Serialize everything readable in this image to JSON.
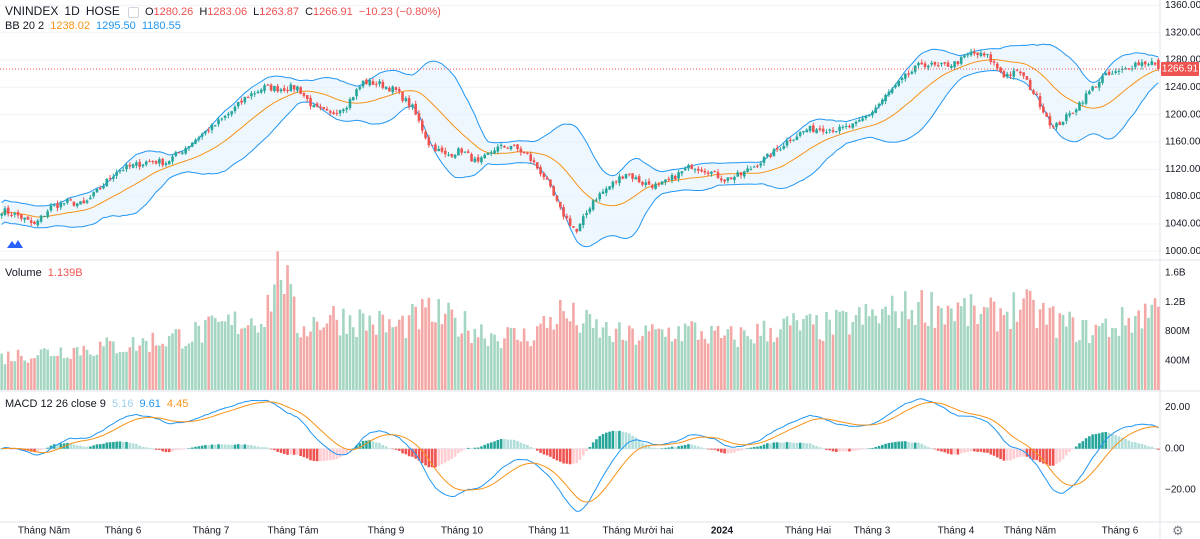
{
  "header": {
    "symbol": "VNINDEX",
    "interval": "1D",
    "exchange": "HOSE",
    "o_label": "O",
    "o": "1280.26",
    "h_label": "H",
    "h": "1283.06",
    "l_label": "L",
    "l": "1263.87",
    "c_label": "C",
    "c": "1266.91",
    "change": "−10.23 (−0.80%)"
  },
  "bb_legend": {
    "name": "BB 20 2",
    "basis": "1238.02",
    "upper": "1295.50",
    "lower": "1180.55"
  },
  "volume_legend": {
    "name": "Volume",
    "value": "1.139B"
  },
  "macd_legend": {
    "name": "MACD 12 26 close 9",
    "hist": "5.16",
    "macd": "9.61",
    "signal": "4.45"
  },
  "price_tag": "1266.91",
  "colors": {
    "up": "#26a69a",
    "down": "#ef5350",
    "upper": "#2196f3",
    "basis": "#f7931a",
    "band_fill": "#e3f2fd"
  },
  "chart_data": {
    "type": "candlestick",
    "title": "VNINDEX 1D HOSE",
    "price_axis": {
      "ticks": [
        "1360.00",
        "1320.00",
        "1280.00",
        "1240.00",
        "1200.00",
        "1160.00",
        "1120.00",
        "1080.00",
        "1040.00",
        "1000.00"
      ],
      "range": [
        990,
        1365
      ]
    },
    "volume_axis": {
      "ticks": [
        "1.6B",
        "1.2B",
        "800M",
        "400M"
      ],
      "range": [
        0,
        1.75
      ]
    },
    "macd_axis": {
      "ticks": [
        "20.00",
        "0.00",
        "−20.00"
      ],
      "range": [
        -35,
        27
      ]
    },
    "time_labels": [
      "Tháng Năm",
      "Tháng 6",
      "Tháng 7",
      "Tháng Tám",
      "Tháng 9",
      "Tháng 10",
      "Tháng 11",
      "Tháng Mười hai",
      "2024",
      "Tháng Hai",
      "Tháng 3",
      "Tháng 4",
      "Tháng Năm",
      "Tháng 6"
    ],
    "close_path": [
      [
        0,
        1060
      ],
      [
        5,
        1052
      ],
      [
        10,
        1038
      ],
      [
        15,
        1065
      ],
      [
        20,
        1072
      ],
      [
        25,
        1068
      ],
      [
        30,
        1092
      ],
      [
        35,
        1118
      ],
      [
        40,
        1125
      ],
      [
        45,
        1132
      ],
      [
        50,
        1130
      ],
      [
        55,
        1148
      ],
      [
        60,
        1168
      ],
      [
        65,
        1185
      ],
      [
        70,
        1205
      ],
      [
        75,
        1228
      ],
      [
        80,
        1240
      ],
      [
        85,
        1238
      ],
      [
        90,
        1240
      ],
      [
        95,
        1210
      ],
      [
        100,
        1200
      ],
      [
        105,
        1215
      ],
      [
        110,
        1248
      ],
      [
        115,
        1245
      ],
      [
        120,
        1235
      ],
      [
        125,
        1210
      ],
      [
        130,
        1158
      ],
      [
        135,
        1140
      ],
      [
        140,
        1148
      ],
      [
        145,
        1128
      ],
      [
        150,
        1150
      ],
      [
        155,
        1155
      ],
      [
        160,
        1140
      ],
      [
        165,
        1110
      ],
      [
        170,
        1060
      ],
      [
        175,
        1028
      ],
      [
        180,
        1075
      ],
      [
        185,
        1095
      ],
      [
        190,
        1115
      ],
      [
        195,
        1100
      ],
      [
        200,
        1095
      ],
      [
        205,
        1110
      ],
      [
        210,
        1125
      ],
      [
        215,
        1118
      ],
      [
        220,
        1105
      ],
      [
        225,
        1112
      ],
      [
        230,
        1128
      ],
      [
        235,
        1145
      ],
      [
        240,
        1165
      ],
      [
        245,
        1178
      ],
      [
        250,
        1180
      ],
      [
        255,
        1178
      ],
      [
        260,
        1185
      ],
      [
        265,
        1205
      ],
      [
        270,
        1232
      ],
      [
        275,
        1255
      ],
      [
        280,
        1275
      ],
      [
        285,
        1270
      ],
      [
        290,
        1275
      ],
      [
        295,
        1290
      ],
      [
        300,
        1285
      ],
      [
        305,
        1258
      ],
      [
        310,
        1262
      ],
      [
        315,
        1225
      ],
      [
        320,
        1180
      ],
      [
        325,
        1200
      ],
      [
        330,
        1228
      ],
      [
        335,
        1255
      ],
      [
        340,
        1262
      ],
      [
        345,
        1275
      ],
      [
        350,
        1277
      ],
      [
        352,
        1267
      ]
    ],
    "volume_path": [
      [
        0,
        0.45
      ],
      [
        20,
        0.55
      ],
      [
        40,
        0.62
      ],
      [
        60,
        0.78
      ],
      [
        70,
        0.9
      ],
      [
        80,
        1.02
      ],
      [
        85,
        1.75
      ],
      [
        90,
        0.85
      ],
      [
        100,
        1.0
      ],
      [
        110,
        0.95
      ],
      [
        120,
        0.85
      ],
      [
        130,
        1.05
      ],
      [
        140,
        0.9
      ],
      [
        150,
        0.75
      ],
      [
        160,
        0.72
      ],
      [
        170,
        1.05
      ],
      [
        180,
        0.85
      ],
      [
        190,
        0.72
      ],
      [
        200,
        0.78
      ],
      [
        210,
        0.82
      ],
      [
        220,
        0.7
      ],
      [
        230,
        0.78
      ],
      [
        240,
        0.88
      ],
      [
        250,
        0.85
      ],
      [
        260,
        0.95
      ],
      [
        270,
        1.05
      ],
      [
        280,
        1.15
      ],
      [
        290,
        1.1
      ],
      [
        300,
        1.0
      ],
      [
        310,
        1.15
      ],
      [
        320,
        0.95
      ],
      [
        330,
        0.8
      ],
      [
        340,
        0.9
      ],
      [
        352,
        1.139
      ]
    ]
  }
}
